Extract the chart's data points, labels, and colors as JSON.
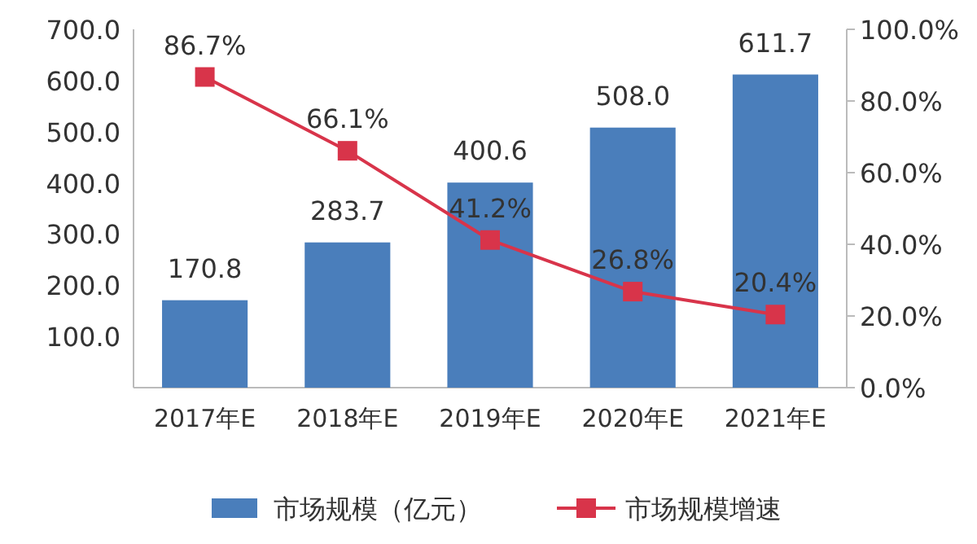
{
  "chart_data": {
    "type": "bar",
    "categories": [
      "2017年E",
      "2018年E",
      "2019年E",
      "2020年E",
      "2021年E"
    ],
    "series": [
      {
        "name": "市场规模（亿元）",
        "color": "#4a7ebb",
        "values": [
          170.8,
          283.7,
          400.6,
          508.0,
          611.7
        ],
        "value_labels": [
          "170.8",
          "283.7",
          "400.6",
          "508.0",
          "611.7"
        ]
      },
      {
        "name": "市场规模增速",
        "type": "line",
        "axis": "y2",
        "color": "#d8344a",
        "marker": "square",
        "values": [
          86.7,
          66.1,
          41.2,
          26.8,
          20.4
        ],
        "value_labels": [
          "86.7%",
          "66.1%",
          "41.2%",
          "26.8%",
          "20.4%"
        ]
      }
    ],
    "ylim": [
      0,
      700
    ],
    "yticks": [
      {
        "value": 0,
        "label": null
      },
      {
        "value": 100,
        "label": "100.0"
      },
      {
        "value": 200,
        "label": "200.0"
      },
      {
        "value": 300,
        "label": "300.0"
      },
      {
        "value": 400,
        "label": "400.0"
      },
      {
        "value": 500,
        "label": "500.0"
      },
      {
        "value": 600,
        "label": "600.0"
      },
      {
        "value": 700,
        "label": "700.0"
      }
    ],
    "y2lim": [
      0,
      100
    ],
    "y2ticks": [
      {
        "value": 0,
        "label": "0.0%"
      },
      {
        "value": 20,
        "label": "20.0%"
      },
      {
        "value": 40,
        "label": "40.0%"
      },
      {
        "value": 60,
        "label": "60.0%"
      },
      {
        "value": 80,
        "label": "80.0%"
      },
      {
        "value": 100,
        "label": "100.0%"
      }
    ],
    "legend": "bottom",
    "grid": false
  }
}
